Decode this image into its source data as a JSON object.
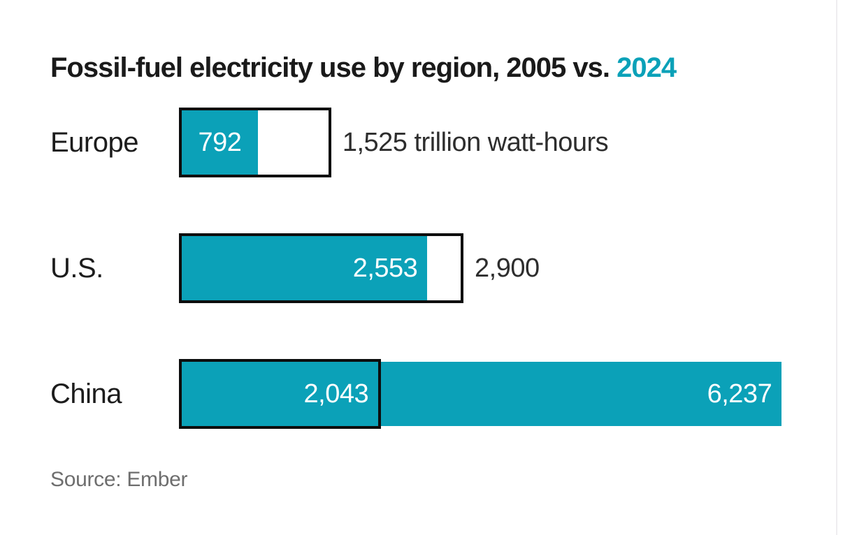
{
  "title": {
    "main": "Fossil-fuel electricity use by region, 2005 vs. ",
    "highlight": "2024"
  },
  "source": "Source: Ember",
  "colors": {
    "teal": "#0ba1b8",
    "outline_black": "#0d0d0d",
    "title_text": "#1a1a1a",
    "row_label_text": "#1c1c1c",
    "outside_label_text": "#2d2d2d",
    "inside_label_text": "#ffffff",
    "source_text": "#6e6e6e",
    "page_edge_line": "#efedf0",
    "background": "#ffffff"
  },
  "chart_data": {
    "type": "bar",
    "orientation": "horizontal",
    "title": "Fossil-fuel electricity use by region, 2005 vs. 2024",
    "unit": "trillion watt-hours",
    "categories": [
      "Europe",
      "U.S.",
      "China"
    ],
    "series": [
      {
        "name": "2005",
        "style": "black-outline-box",
        "values": [
          1525,
          2900,
          2043
        ]
      },
      {
        "name": "2024",
        "style": "teal-filled-bar",
        "values": [
          792,
          2553,
          6237
        ]
      }
    ],
    "xlim": [
      0,
      6430
    ],
    "grid": false,
    "legend_position": "encoded-in-title-colors",
    "value_labels": [
      {
        "category": "Europe",
        "inside_2024": "792",
        "inside_2024_align": "center",
        "inside_2005": "",
        "outside": "1,525 trillion watt-hours"
      },
      {
        "category": "U.S.",
        "inside_2024": "2,553",
        "inside_2024_align": "right",
        "inside_2005": "",
        "outside": "2,900"
      },
      {
        "category": "China",
        "inside_2024": "6,237",
        "inside_2024_align": "right",
        "inside_2005": "2,043",
        "outside": ""
      }
    ]
  }
}
